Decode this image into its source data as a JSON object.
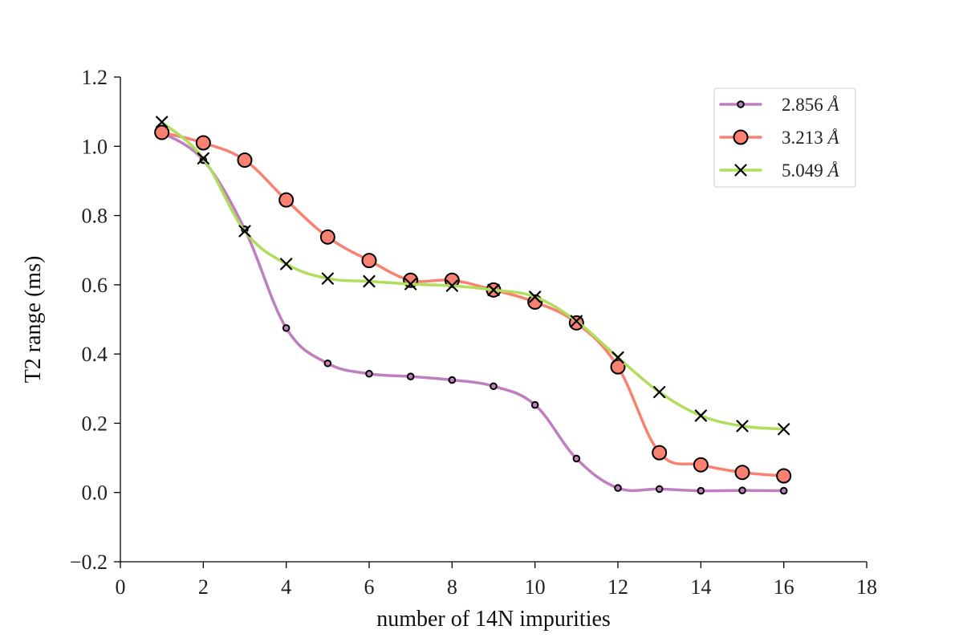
{
  "chart_data": {
    "type": "line",
    "title": "",
    "xlabel": "number of 14N impurities",
    "ylabel": "T2 range (ms)",
    "xlim": [
      0,
      18
    ],
    "ylim": [
      -0.2,
      1.2
    ],
    "xticks": [
      0,
      2,
      4,
      6,
      8,
      10,
      12,
      14,
      16,
      18
    ],
    "yticks": [
      -0.2,
      0.0,
      0.2,
      0.4,
      0.6,
      0.8,
      1.0,
      1.2
    ],
    "xtick_labels": [
      "0",
      "2",
      "4",
      "6",
      "8",
      "10",
      "12",
      "14",
      "16",
      "18"
    ],
    "ytick_labels": [
      "−0.2",
      "0.0",
      "0.2",
      "0.4",
      "0.6",
      "0.8",
      "1.0",
      "1.2"
    ],
    "grid": false,
    "legend_position": "top-right",
    "x": [
      1,
      2,
      3,
      4,
      5,
      6,
      7,
      8,
      9,
      10,
      11,
      12,
      13,
      14,
      15,
      16
    ],
    "series": [
      {
        "name": "2.856 Å",
        "name_number": "2.856",
        "name_unit": "Å",
        "color": "#bf7fbf",
        "marker": "small-dot",
        "values": [
          1.04,
          0.96,
          0.76,
          0.475,
          0.373,
          0.343,
          0.335,
          0.325,
          0.307,
          0.253,
          0.098,
          0.013,
          0.01,
          0.005,
          0.006,
          0.005
        ]
      },
      {
        "name": "3.213 Å",
        "name_number": "3.213",
        "name_unit": "Å",
        "color": "#fa8072",
        "marker": "circle",
        "values": [
          1.04,
          1.01,
          0.96,
          0.845,
          0.738,
          0.67,
          0.613,
          0.613,
          0.585,
          0.55,
          0.49,
          0.363,
          0.115,
          0.08,
          0.058,
          0.048
        ]
      },
      {
        "name": "5.049 Å",
        "name_number": "5.049",
        "name_unit": "Å",
        "color": "#b0de5c",
        "marker": "x",
        "values": [
          1.07,
          0.965,
          0.755,
          0.66,
          0.618,
          0.61,
          0.602,
          0.597,
          0.585,
          0.565,
          0.495,
          0.39,
          0.29,
          0.222,
          0.192,
          0.183
        ]
      }
    ]
  }
}
